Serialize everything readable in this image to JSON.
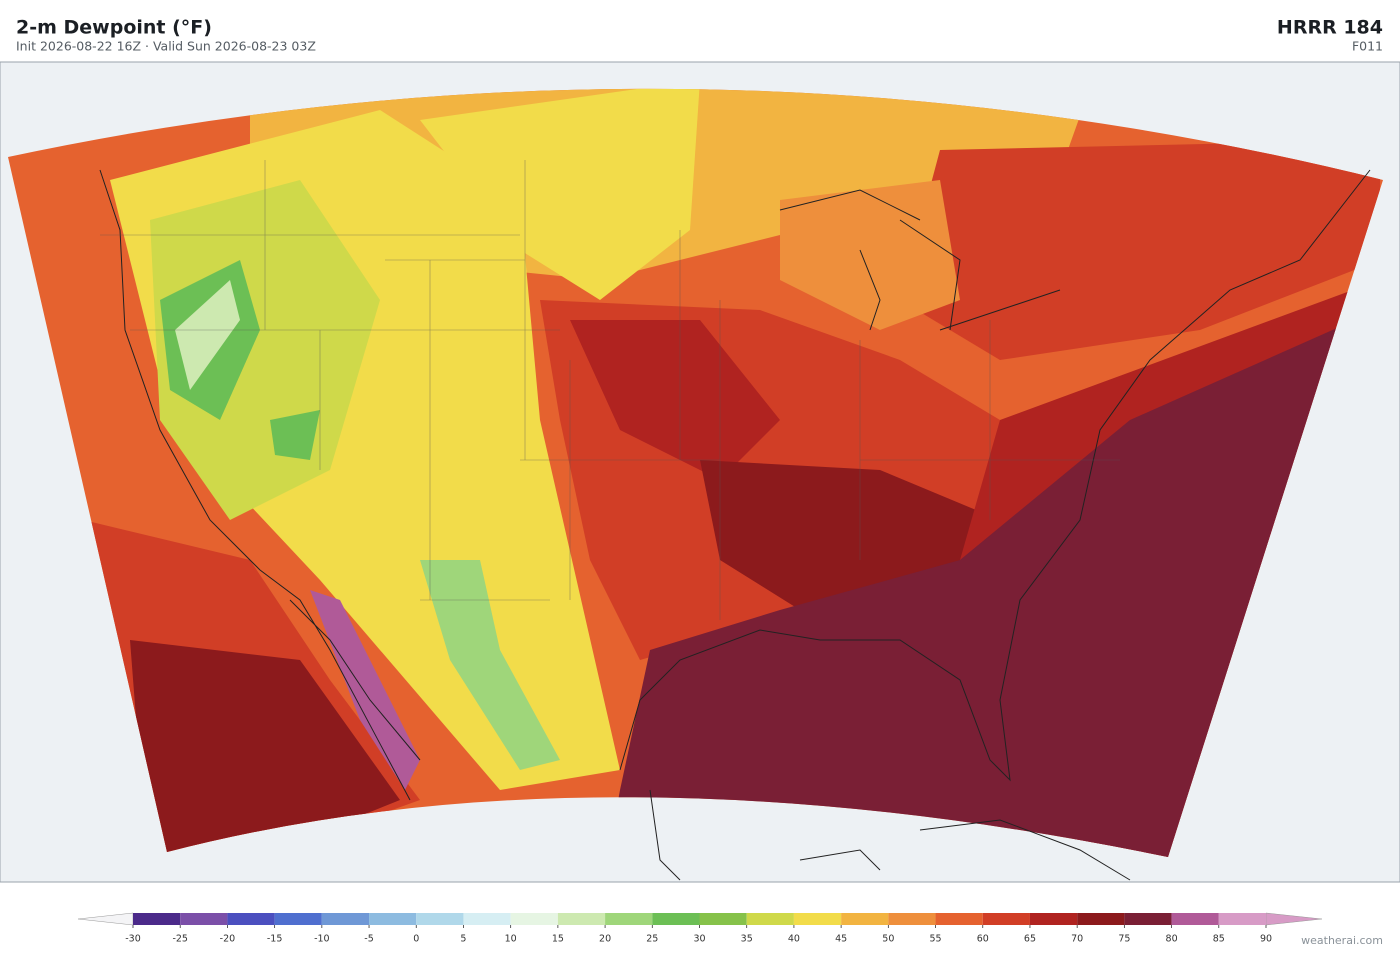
{
  "header": {
    "title": "2-m Dewpoint  (°F)",
    "subtitle": "Init 2026-08-22 16Z  ·  Valid Sun 2026-08-23 03Z",
    "model": "HRRR  184",
    "forecast_hour": "F011"
  },
  "colorbar": {
    "ticks": [
      -30,
      -25,
      -20,
      -15,
      -10,
      -5,
      0,
      5,
      10,
      15,
      20,
      25,
      30,
      35,
      40,
      45,
      50,
      55,
      60,
      65,
      70,
      75,
      80,
      85,
      90
    ],
    "colors": [
      "#4b2a8a",
      "#7b4fa8",
      "#4b4fbf",
      "#4f6fcf",
      "#6f98d6",
      "#8dbbe0",
      "#b0d8ea",
      "#d6eef3",
      "#e6f5e3",
      "#cde9b0",
      "#9fd67a",
      "#6cbf55",
      "#86c24a",
      "#cfd94a",
      "#f2dc4a",
      "#f2b441",
      "#ee8f3c",
      "#e5622f",
      "#d13e26",
      "#b02320",
      "#8c1a1c",
      "#7a1f35",
      "#b05a98",
      "#d79bc6"
    ],
    "under_color": "#f4f4f6",
    "over_color": "#d79bc6"
  },
  "watermark": "weatherai.com"
}
